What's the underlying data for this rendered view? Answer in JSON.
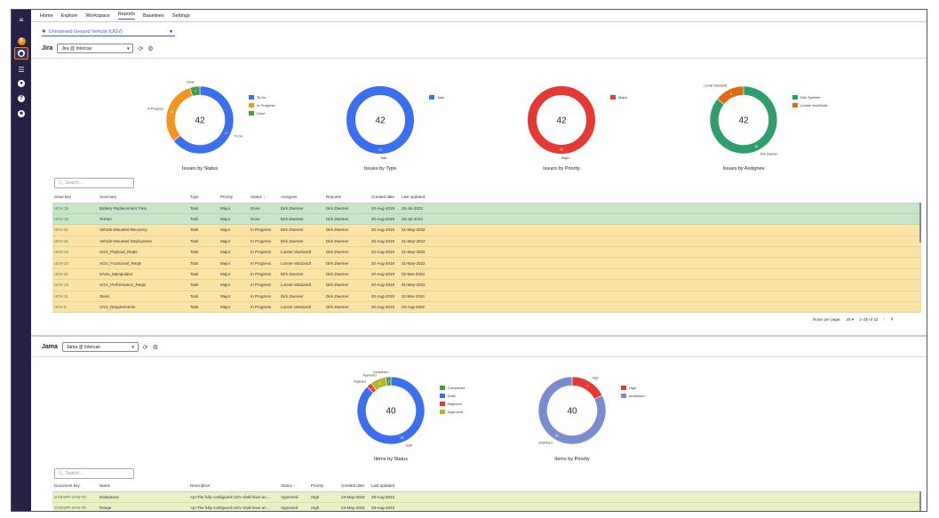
{
  "nav": {
    "tabs": [
      "Home",
      "Explore",
      "Workspace",
      "Reports",
      "Baselines",
      "Settings"
    ]
  },
  "project": {
    "selected": "Unmanned Ground Vehicle (UGV)"
  },
  "jira": {
    "label": "Jira",
    "source": "Jira @ Intercax",
    "charts": [
      {
        "title": "Issues by Status",
        "center": "42",
        "legend": [
          {
            "label": "To Do",
            "color": "#3c6ff0"
          },
          {
            "label": "In Progress",
            "color": "#f7941d"
          },
          {
            "label": "Done",
            "color": "#43a047"
          }
        ],
        "slices": [
          {
            "value": 27,
            "color": "#3c6ff0",
            "name": "To Do"
          },
          {
            "value": 13,
            "color": "#f7941d",
            "name": "In Progress"
          },
          {
            "value": 2,
            "color": "#43a047",
            "name": "Done"
          }
        ]
      },
      {
        "title": "Issues by Type",
        "center": "42",
        "legend": [
          {
            "label": "Task",
            "color": "#3c6ff0"
          }
        ],
        "slices": [
          {
            "value": 42,
            "color": "#3c6ff0",
            "name": "Task"
          }
        ]
      },
      {
        "title": "Issues by Priority",
        "center": "42",
        "legend": [
          {
            "label": "Major",
            "color": "#e53935"
          }
        ],
        "slices": [
          {
            "value": 42,
            "color": "#e53935",
            "name": "Major"
          }
        ]
      },
      {
        "title": "Issues by Assignee",
        "center": "42",
        "legend": [
          {
            "label": "Dirk Zwemer",
            "color": "#2e9e6e"
          },
          {
            "label": "Lonnie VanZandt",
            "color": "#e06a16"
          }
        ],
        "slices": [
          {
            "value": 36,
            "color": "#2e9e6e",
            "name": "Dirk Zwemer"
          },
          {
            "value": 6,
            "color": "#e06a16",
            "name": "Lonnie VanZandt"
          }
        ]
      }
    ],
    "search_placeholder": "Search...",
    "columns": [
      "Issue key",
      "Summary",
      "Type",
      "Priority",
      "Status ↑",
      "Assignee",
      "Reporter",
      "Created date",
      "Last updated"
    ],
    "rows": [
      {
        "cls": "green",
        "cells": [
          "UGV-19",
          "Battery Replacement Time",
          "Task",
          "Major",
          "Done",
          "Dirk Zwemer",
          "Dirk Zwemer",
          "20-Aug-2019",
          "26-Jul-2023"
        ]
      },
      {
        "cls": "green",
        "cells": [
          "UGV-15",
          "Terrain",
          "Task",
          "Major",
          "Done",
          "Dirk Zwemer",
          "Dirk Zwemer",
          "20-Aug-2019",
          "26-Jul-2023"
        ]
      },
      {
        "cls": "yellow",
        "cells": [
          "UGV-41",
          "Vehicle-Mounted Recovery",
          "Task",
          "Major",
          "In Progress",
          "Dirk Zwemer",
          "Dirk Zwemer",
          "20-Aug-2019",
          "31-May-2022"
        ]
      },
      {
        "cls": "yellow",
        "cells": [
          "UGV-31",
          "Vehicle-Mounted Deployment",
          "Task",
          "Major",
          "In Progress",
          "Dirk Zwemer",
          "Dirk Zwemer",
          "20-Aug-2019",
          "31-May-2022"
        ]
      },
      {
        "cls": "yellow",
        "cells": [
          "UGV-23",
          "UGV_Payload_Reqts",
          "Task",
          "Major",
          "In Progress",
          "Lonnie VanZandt",
          "Dirk Zwemer",
          "20-Aug-2019",
          "31-May-2022"
        ]
      },
      {
        "cls": "yellow",
        "cells": [
          "UGV-22",
          "UGV_Functional_Reqts",
          "Task",
          "Major",
          "In Progress",
          "Lonnie VanZandt",
          "Dirk Zwemer",
          "20-Aug-2019",
          "31-May-2022"
        ]
      },
      {
        "cls": "yellow",
        "cells": [
          "UGV-21",
          "SAxis_Manipulator",
          "Task",
          "Major",
          "In Progress",
          "Dirk Zwemer",
          "Dirk Zwemer",
          "20-Aug-2019",
          "02-Mar-2023"
        ]
      },
      {
        "cls": "yellow",
        "cells": [
          "UGV-13",
          "UGV_Performance_Reqts",
          "Task",
          "Major",
          "In Progress",
          "Lonnie VanZandt",
          "Dirk Zwemer",
          "20-Aug-2019",
          "31-May-2022"
        ]
      },
      {
        "cls": "yellow",
        "cells": [
          "UGV-11",
          "Stairs",
          "Task",
          "Major",
          "In Progress",
          "Dirk Zwemer",
          "Dirk Zwemer",
          "20-Aug-2019",
          "02-Mar-2023"
        ]
      },
      {
        "cls": "yellow",
        "cells": [
          "UGV-9",
          "UGV_Requirements",
          "Task",
          "Major",
          "In Progress",
          "Lonnie VanZandt",
          "Dirk Zwemer",
          "20-Aug-2019",
          "03-Aug-2022"
        ]
      }
    ],
    "pager": {
      "rows_label": "Rows per page:",
      "rows_value": "25",
      "range": "1–25 of 42"
    }
  },
  "jama": {
    "label": "Jama",
    "source": "Jama @ Intercax",
    "charts": [
      {
        "title": "Items by Status",
        "center": "40",
        "legend": [
          {
            "label": "Completed",
            "color": "#43a047"
          },
          {
            "label": "Draft",
            "color": "#3c6ff0"
          },
          {
            "label": "Rejected",
            "color": "#e53935"
          },
          {
            "label": "Approved",
            "color": "#b5b52a"
          }
        ],
        "slices": [
          {
            "value": 35,
            "color": "#3c6ff0",
            "name": "Draft"
          },
          {
            "value": 1,
            "color": "#e53935",
            "name": "Rejected"
          },
          {
            "value": 3,
            "color": "#b5b52a",
            "name": "Approved"
          },
          {
            "value": 1,
            "color": "#43a047",
            "name": "Completed"
          }
        ]
      },
      {
        "title": "Items by Priority",
        "center": "40",
        "legend": [
          {
            "label": "High",
            "color": "#e53935"
          },
          {
            "label": "undefined",
            "color": "#7b8bd0"
          }
        ],
        "slices": [
          {
            "value": 7,
            "color": "#e53935",
            "name": "High"
          },
          {
            "value": 33,
            "color": "#7b8bd0",
            "name": "undefined"
          }
        ]
      }
    ],
    "search_placeholder": "Search...",
    "columns": [
      "Document key",
      "Name",
      "Description",
      "Status ↑",
      "Priority",
      "Created date",
      "Last updated"
    ],
    "rows": [
      {
        "cls": "lime",
        "cells": [
          "SYNAPP-SYN-75",
          "Endurance",
          "<p>The fully configured UGV shall have an ...",
          "Approved",
          "High",
          "23-May-2019",
          "29-Aug-2023"
        ]
      },
      {
        "cls": "lime",
        "cells": [
          "SYNAPP-SYN-76",
          "Range",
          "<p>The fully configured UGV shall have an ...",
          "Approved",
          "High",
          "23-May-2019",
          "29-Aug-2023"
        ]
      }
    ]
  }
}
